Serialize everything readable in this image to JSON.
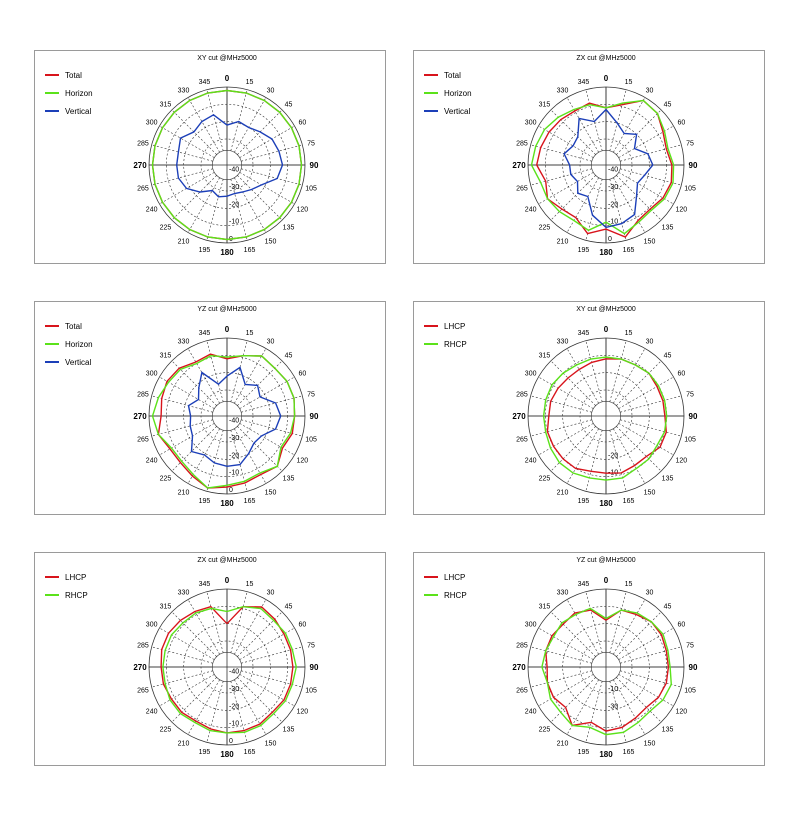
{
  "chart_data": [
    {
      "type": "polar-line",
      "title": "XY cut @MHz5000",
      "angle_labels": [
        "0",
        "15",
        "30",
        "45",
        "60",
        "75",
        "90",
        "105",
        "120",
        "135",
        "150",
        "165",
        "180",
        "195",
        "210",
        "225",
        "240",
        "265",
        "270",
        "285",
        "300",
        "315",
        "330",
        "345"
      ],
      "radial_labels": [
        "0",
        "-10",
        "-20",
        "-30",
        "-40"
      ],
      "series": [
        {
          "name": "Total",
          "color": "#d8141c",
          "values": [
            -2,
            -2,
            -2,
            -2,
            -2,
            -2,
            -2,
            -2,
            -2,
            -2,
            -2,
            -2,
            -2,
            -2,
            -2,
            -2,
            -2,
            -2,
            -2,
            -2,
            -2,
            -2,
            -2,
            -2
          ]
        },
        {
          "name": "Horizon",
          "color": "#5be21a",
          "values": [
            -2,
            -2,
            -2,
            -2,
            -2,
            -2,
            -2,
            -2,
            -2,
            -2,
            -2,
            -2,
            -2,
            -2,
            -2,
            -2,
            -2,
            -2,
            -2,
            -2,
            -2,
            -2,
            -2,
            -2
          ]
        },
        {
          "name": "Vertical",
          "color": "#1c3fb8",
          "values": [
            -22,
            -19,
            -20,
            -18,
            -15,
            -14,
            -13,
            -15,
            -22,
            -25,
            -27,
            -28,
            -27,
            -26,
            -28,
            -23,
            -18,
            -16,
            -16,
            -16,
            -14,
            -18,
            -16,
            -15
          ]
        }
      ]
    },
    {
      "type": "polar-line",
      "title": "ZX cut @MHz5000",
      "angle_labels": [
        "0",
        "15",
        "30",
        "45",
        "60",
        "75",
        "90",
        "105",
        "120",
        "135",
        "150",
        "165",
        "180",
        "195",
        "210",
        "225",
        "240",
        "265",
        "270",
        "285",
        "300",
        "315",
        "330",
        "345"
      ],
      "radial_labels": [
        "0",
        "-10",
        "-20",
        "-30",
        "-40"
      ],
      "series": [
        {
          "name": "Total",
          "color": "#d8141c",
          "values": [
            -12,
            -9,
            -2,
            -3,
            -7,
            -9,
            -7,
            -6,
            -7,
            -9,
            -8,
            -2,
            -8,
            -4,
            -10,
            -9,
            -6,
            -9,
            -5,
            -6,
            -7,
            -8,
            -9,
            -8
          ]
        },
        {
          "name": "Horizon",
          "color": "#5be21a",
          "values": [
            -12,
            -8,
            -2,
            -3,
            -6,
            -8,
            -6,
            -5,
            -6,
            -8,
            -7,
            -4,
            -12,
            -6,
            -8,
            -7,
            -6,
            -6,
            -2,
            -3,
            -4,
            -6,
            -8,
            -9
          ]
        },
        {
          "name": "Vertical",
          "color": "#1c3fb8",
          "values": [
            -13,
            -20,
            -24,
            -20,
            -26,
            -20,
            -18,
            -22,
            -24,
            -20,
            -12,
            -10,
            -9,
            -15,
            -24,
            -22,
            -26,
            -24,
            -24,
            -20,
            -23,
            -22,
            -14,
            -19
          ]
        }
      ]
    },
    {
      "type": "polar-line",
      "title": "YZ cut @MHz5000",
      "angle_labels": [
        "0",
        "15",
        "30",
        "45",
        "60",
        "75",
        "90",
        "105",
        "120",
        "135",
        "150",
        "165",
        "180",
        "195",
        "210",
        "225",
        "240",
        "265",
        "270",
        "285",
        "300",
        "315",
        "330",
        "345"
      ],
      "radial_labels": [
        "0",
        "-10",
        "-20",
        "-30",
        "-40"
      ],
      "series": [
        {
          "name": "Total",
          "color": "#d8141c",
          "values": [
            -12,
            -9,
            -5,
            -6,
            -5,
            -5,
            -6,
            -6,
            -8,
            -4,
            -6,
            -5,
            -4,
            -2,
            -5,
            -7,
            -7,
            -4,
            -7,
            -6,
            -5,
            -6,
            -9,
            -8
          ]
        },
        {
          "name": "Horizon",
          "color": "#5be21a",
          "values": [
            -11,
            -9,
            -5,
            -6,
            -5,
            -5,
            -6,
            -7,
            -9,
            -4,
            -7,
            -6,
            -5,
            -2,
            -6,
            -8,
            -8,
            -4,
            -2,
            -4,
            -6,
            -7,
            -10,
            -9
          ]
        },
        {
          "name": "Vertical",
          "color": "#1c3fb8",
          "values": [
            -22,
            -16,
            -24,
            -20,
            -23,
            -16,
            -14,
            -16,
            -22,
            -23,
            -20,
            -16,
            -16,
            -17,
            -19,
            -16,
            -22,
            -23,
            -24,
            -22,
            -26,
            -22,
            -16,
            -26
          ]
        }
      ]
    },
    {
      "type": "polar-line",
      "title": "XY cut @MHz5000",
      "angle_labels": [
        "0",
        "15",
        "30",
        "45",
        "60",
        "75",
        "90",
        "105",
        "120",
        "135",
        "150",
        "165",
        "180",
        "195",
        "210",
        "225",
        "240",
        "265",
        "270",
        "285",
        "300",
        "315",
        "330",
        "345"
      ],
      "radial_labels": [
        "",
        "-10",
        "-20",
        "",
        ""
      ],
      "series": [
        {
          "name": "LHCP",
          "color": "#d8141c",
          "values": [
            -12,
            -11,
            -11,
            -10,
            -11,
            -11,
            -11,
            -9,
            -9,
            -12,
            -12,
            -11,
            -12,
            -12,
            -10,
            -10,
            -10,
            -10,
            -12,
            -12,
            -13,
            -14,
            -14,
            -13
          ]
        },
        {
          "name": "RHCP",
          "color": "#5be21a",
          "values": [
            -11,
            -11,
            -11,
            -10,
            -10,
            -10,
            -10,
            -10,
            -11,
            -10,
            -10,
            -8,
            -8,
            -8,
            -7,
            -7,
            -8,
            -9,
            -9,
            -9,
            -9,
            -10,
            -11,
            -11
          ]
        }
      ]
    },
    {
      "type": "polar-line",
      "title": "ZX cut @MHz5000",
      "angle_labels": [
        "0",
        "15",
        "30",
        "45",
        "60",
        "75",
        "90",
        "105",
        "120",
        "135",
        "150",
        "165",
        "180",
        "195",
        "210",
        "225",
        "240",
        "265",
        "270",
        "285",
        "300",
        "315",
        "330",
        "345"
      ],
      "radial_labels": [
        "0",
        "-10",
        "-20",
        "-30",
        "-40"
      ],
      "series": [
        {
          "name": "LHCP",
          "color": "#d8141c",
          "values": [
            -20,
            -9,
            -5,
            -6,
            -7,
            -7,
            -7,
            -7,
            -7,
            -8,
            -7,
            -7,
            -7,
            -8,
            -9,
            -8,
            -8,
            -7,
            -7,
            -6,
            -6,
            -7,
            -8,
            -9
          ]
        },
        {
          "name": "RHCP",
          "color": "#5be21a",
          "values": [
            -13,
            -9,
            -6,
            -7,
            -6,
            -6,
            -5,
            -6,
            -6,
            -7,
            -6,
            -6,
            -7,
            -7,
            -8,
            -7,
            -7,
            -8,
            -8,
            -8,
            -8,
            -9,
            -9,
            -10
          ]
        }
      ]
    },
    {
      "type": "polar-line",
      "title": "YZ cut @MHz5000",
      "angle_labels": [
        "0",
        "15",
        "30",
        "45",
        "60",
        "75",
        "90",
        "105",
        "120",
        "135",
        "150",
        "165",
        "180",
        "195",
        "210",
        "225",
        "240",
        "265",
        "270",
        "285",
        "300",
        "315",
        "330",
        "345"
      ],
      "radial_labels": [
        "",
        "",
        "-30",
        "-10",
        ""
      ],
      "series": [
        {
          "name": "LHCP",
          "color": "#d8141c",
          "values": [
            -18,
            -11,
            -10,
            -8,
            -8,
            -9,
            -9,
            -9,
            -10,
            -12,
            -11,
            -9,
            -8,
            -12,
            -6,
            -12,
            -10,
            -10,
            -11,
            -9,
            -9,
            -10,
            -9,
            -11
          ]
        },
        {
          "name": "RHCP",
          "color": "#5be21a",
          "values": [
            -17,
            -11,
            -9,
            -8,
            -7,
            -8,
            -8,
            -6,
            -7,
            -9,
            -8,
            -6,
            -6,
            -9,
            -6,
            -8,
            -8,
            -10,
            -8,
            -9,
            -10,
            -9,
            -10,
            -10
          ]
        }
      ]
    }
  ]
}
